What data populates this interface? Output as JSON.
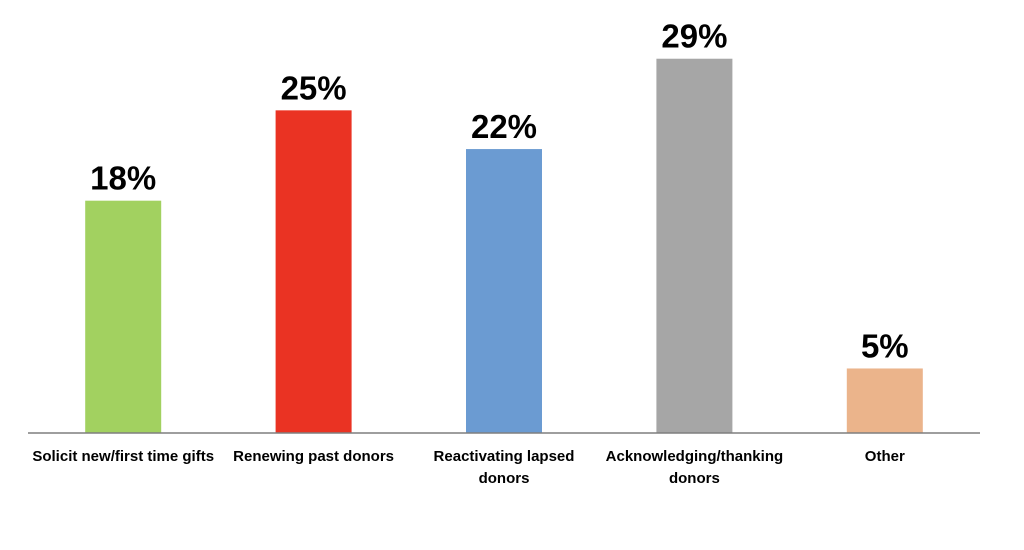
{
  "chart_data": {
    "type": "bar",
    "title": "",
    "xlabel": "",
    "ylabel": "",
    "ylim": [
      0,
      32
    ],
    "grid": false,
    "legend": "none",
    "value_suffix": "%",
    "categories": [
      [
        "Solicit new/first time gifts"
      ],
      [
        "Renewing past donors"
      ],
      [
        "Reactivating lapsed",
        "donors"
      ],
      [
        "Acknowledging/thanking",
        "donors"
      ],
      [
        "Other"
      ]
    ],
    "values": [
      18,
      25,
      22,
      29,
      5
    ],
    "value_labels": [
      "18%",
      "25%",
      "22%",
      "29%",
      "5%"
    ],
    "colors": [
      "#A2D160",
      "#EA3323",
      "#6B9BD2",
      "#A6A6A6",
      "#EBB48B"
    ]
  }
}
